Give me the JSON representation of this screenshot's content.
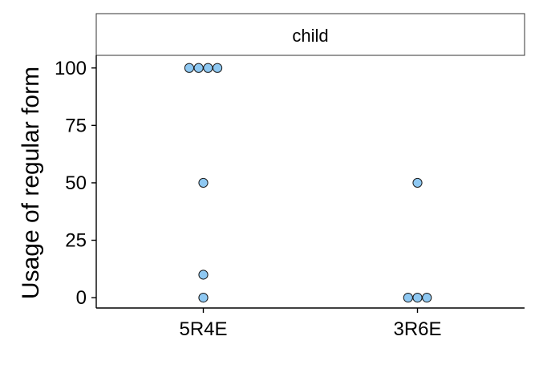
{
  "chart_data": {
    "type": "scatter",
    "facet": "child",
    "categories": [
      "5R4E",
      "3R6E"
    ],
    "ylabel": "Usage of regular form",
    "xlabel": "",
    "ylim": [
      -4.5,
      105.5
    ],
    "yticks": [
      0,
      25,
      50,
      75,
      100
    ],
    "grid": false,
    "series": [
      {
        "points": [
          {
            "category": "5R4E",
            "y": 100
          },
          {
            "category": "5R4E",
            "y": 100
          },
          {
            "category": "5R4E",
            "y": 100
          },
          {
            "category": "5R4E",
            "y": 100
          },
          {
            "category": "5R4E",
            "y": 50
          },
          {
            "category": "5R4E",
            "y": 10
          },
          {
            "category": "5R4E",
            "y": 0
          },
          {
            "category": "3R6E",
            "y": 50
          },
          {
            "category": "3R6E",
            "y": 0
          },
          {
            "category": "3R6E",
            "y": 0
          },
          {
            "category": "3R6E",
            "y": 0
          }
        ]
      }
    ],
    "colors": {
      "point_fill": "#8ec8f2",
      "point_stroke": "#1a1a1a",
      "axis": "#000000",
      "strip_fill": "#ffffff",
      "strip_border": "#333333"
    }
  }
}
